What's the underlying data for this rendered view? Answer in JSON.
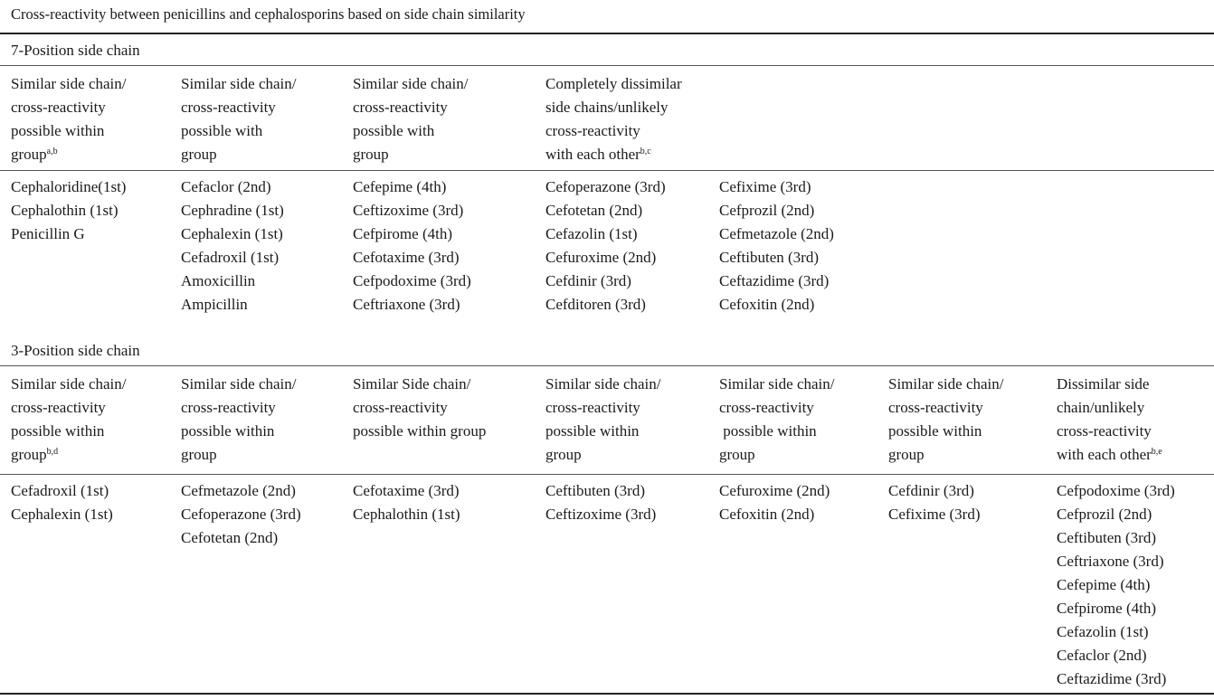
{
  "title": "Cross-reactivity between penicillins and cephalosporins based on side chain similarity",
  "section7": {
    "label": "7-Position side chain",
    "headers": [
      {
        "lines": [
          "Similar side chain/",
          "cross-reactivity",
          "possible within",
          "group"
        ],
        "sup": "a,b"
      },
      {
        "lines": [
          "Similar side chain/",
          "cross-reactivity",
          "possible with",
          "group"
        ],
        "sup": ""
      },
      {
        "lines": [
          "Similar side chain/",
          "cross-reactivity",
          "possible with",
          "group"
        ],
        "sup": ""
      },
      {
        "lines": [
          "Completely dissimilar",
          "side chains/unlikely",
          "cross-reactivity",
          "with each other"
        ],
        "sup": "b,c"
      }
    ],
    "columns": [
      [
        "Cephaloridine(1st)",
        "Cephalothin (1st)",
        "Penicillin G"
      ],
      [
        "Cefaclor (2nd)",
        "Cephradine (1st)",
        "Cephalexin (1st)",
        "Cefadroxil (1st)",
        "Amoxicillin",
        "Ampicillin"
      ],
      [
        "Cefepime (4th)",
        "Ceftizoxime (3rd)",
        "Cefpirome (4th)",
        "Cefotaxime (3rd)",
        "Cefpodoxime (3rd)",
        "Ceftriaxone (3rd)"
      ],
      [
        "Cefoperazone (3rd)",
        "Cefotetan (2nd)",
        "Cefazolin (1st)",
        "Cefuroxime (2nd)",
        "Cefdinir (3rd)",
        "Cefditoren (3rd)"
      ],
      [
        "Cefixime (3rd)",
        "Cefprozil (2nd)",
        "Cefmetazole (2nd)",
        "Ceftibuten (3rd)",
        "Ceftazidime (3rd)",
        "Cefoxitin (2nd)"
      ]
    ]
  },
  "section3": {
    "label": "3-Position side chain",
    "headers": [
      {
        "lines": [
          "Similar side chain/",
          "cross-reactivity",
          "possible within",
          "group"
        ],
        "sup": "b,d"
      },
      {
        "lines": [
          "Similar side chain/",
          "cross-reactivity",
          "possible within",
          "group"
        ],
        "sup": ""
      },
      {
        "lines": [
          "Similar Side chain/",
          "cross-reactivity",
          "possible within group"
        ],
        "sup": ""
      },
      {
        "lines": [
          "Similar side chain/",
          "cross-reactivity",
          "possible within",
          "group"
        ],
        "sup": ""
      },
      {
        "lines": [
          "Similar side chain/",
          "cross-reactivity",
          " possible within",
          "group"
        ],
        "sup": ""
      },
      {
        "lines": [
          "Similar side chain/",
          "cross-reactivity",
          "possible within",
          "group"
        ],
        "sup": ""
      },
      {
        "lines": [
          "Dissimilar side",
          "chain/unlikely",
          "cross-reactivity",
          "with each other"
        ],
        "sup": "b,e"
      }
    ],
    "columns": [
      [
        "Cefadroxil (1st)",
        "Cephalexin (1st)"
      ],
      [
        "Cefmetazole (2nd)",
        "Cefoperazone (3rd)",
        "Cefotetan (2nd)"
      ],
      [
        "Cefotaxime (3rd)",
        "Cephalothin (1st)"
      ],
      [
        "Ceftibuten (3rd)",
        "Ceftizoxime (3rd)"
      ],
      [
        "Cefuroxime (2nd)",
        "Cefoxitin (2nd)"
      ],
      [
        "Cefdinir (3rd)",
        "Cefixime (3rd)"
      ],
      [
        "Cefpodoxime (3rd)",
        "Cefprozil (2nd)",
        "Ceftibuten (3rd)",
        "Ceftriaxone (3rd)",
        "Cefepime (4th)",
        "Cefpirome (4th)",
        "Cefazolin (1st)",
        "Cefaclor (2nd)",
        "Ceftazidime (3rd)"
      ]
    ]
  }
}
